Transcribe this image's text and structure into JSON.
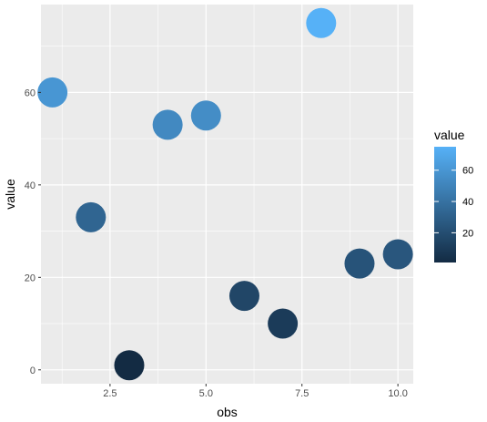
{
  "chart_data": {
    "type": "scatter",
    "title": "",
    "xlabel": "obs",
    "ylabel": "value",
    "xlim": [
      0.7,
      10.4
    ],
    "ylim": [
      -3,
      79
    ],
    "x_ticks": [
      2.5,
      5.0,
      7.5,
      10.0
    ],
    "x_tick_labels": [
      "2.5",
      "5.0",
      "7.5",
      "10.0"
    ],
    "y_ticks": [
      0,
      20,
      40,
      60
    ],
    "y_tick_labels": [
      "0",
      "20",
      "40",
      "60"
    ],
    "grid": true,
    "points": [
      {
        "x": 1,
        "y": 60
      },
      {
        "x": 2,
        "y": 33
      },
      {
        "x": 3,
        "y": 1
      },
      {
        "x": 4,
        "y": 53
      },
      {
        "x": 5,
        "y": 55
      },
      {
        "x": 6,
        "y": 16
      },
      {
        "x": 7,
        "y": 10
      },
      {
        "x": 8,
        "y": 75
      },
      {
        "x": 9,
        "y": 23
      },
      {
        "x": 10,
        "y": 25
      }
    ],
    "color_scale": {
      "variable": "value",
      "low_color": "#132B43",
      "high_color": "#56B1F7",
      "min": 1,
      "max": 75
    },
    "legend": {
      "title": "value",
      "placement": "right",
      "ticks": [
        20,
        40,
        60
      ],
      "tick_labels": [
        "20",
        "40",
        "60"
      ]
    },
    "panel_color": "#EBEBEB",
    "grid_color": "#FFFFFF"
  }
}
